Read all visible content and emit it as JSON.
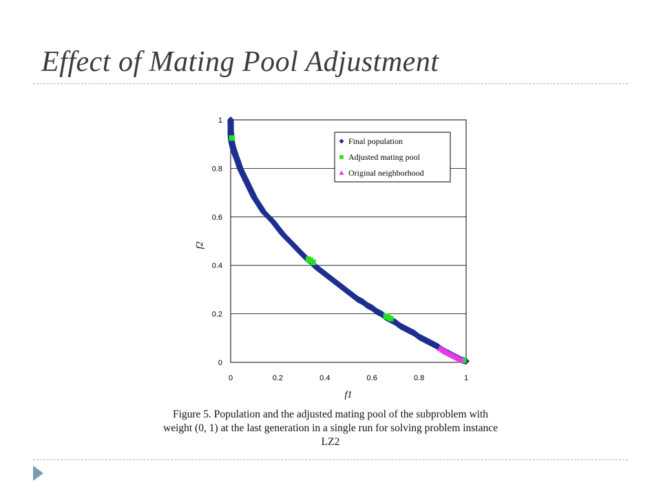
{
  "slide": {
    "title": "Effect of Mating Pool Adjustment"
  },
  "caption": {
    "line1": "Figure 5.    Population and the adjusted mating pool of the subproblem with",
    "line2": "weight (0, 1) at the last generation in a single run for solving problem instance",
    "line3": "LZ2"
  },
  "colors": {
    "final_population": "#1f2f8f",
    "adjusted_mating_pool": "#22e022",
    "original_neighborhood": "#e53be5",
    "rule": "#9bb5c8",
    "bullet": "#7a9bb3"
  },
  "chart_data": {
    "type": "scatter",
    "xlabel": "f1",
    "ylabel": "f2",
    "xlim": [
      0,
      1
    ],
    "ylim": [
      0,
      1
    ],
    "x_ticks": [
      "0",
      "0.2",
      "0.4",
      "0.6",
      "0.8",
      "1"
    ],
    "y_ticks": [
      "0",
      "0.2",
      "0.4",
      "0.6",
      "0.8",
      "1"
    ],
    "grid": "horizontal",
    "legend_position": "top-right",
    "series": [
      {
        "name": "Final population",
        "marker": "diamond",
        "color": "#1f2f8f",
        "x": [
          0.0,
          0.0005,
          0.002,
          0.005,
          0.01,
          0.015,
          0.02,
          0.03,
          0.04,
          0.05,
          0.06,
          0.07,
          0.08,
          0.09,
          0.1,
          0.12,
          0.14,
          0.16,
          0.18,
          0.2,
          0.22,
          0.24,
          0.26,
          0.28,
          0.3,
          0.32,
          0.34,
          0.36,
          0.38,
          0.4,
          0.42,
          0.44,
          0.46,
          0.48,
          0.5,
          0.52,
          0.54,
          0.56,
          0.58,
          0.6,
          0.62,
          0.64,
          0.66,
          0.68,
          0.7,
          0.72,
          0.74,
          0.76,
          0.78,
          0.8,
          0.82,
          0.84,
          0.86,
          0.88,
          0.9,
          0.92,
          0.94,
          0.96,
          0.98,
          1.0
        ],
        "y": [
          1.0,
          0.95,
          0.925,
          0.905,
          0.885,
          0.87,
          0.855,
          0.83,
          0.8,
          0.78,
          0.76,
          0.74,
          0.72,
          0.7,
          0.68,
          0.65,
          0.62,
          0.6,
          0.58,
          0.555,
          0.53,
          0.51,
          0.49,
          0.47,
          0.45,
          0.43,
          0.415,
          0.395,
          0.38,
          0.365,
          0.35,
          0.335,
          0.32,
          0.305,
          0.29,
          0.275,
          0.26,
          0.25,
          0.235,
          0.225,
          0.21,
          0.2,
          0.185,
          0.175,
          0.165,
          0.15,
          0.14,
          0.13,
          0.12,
          0.105,
          0.095,
          0.085,
          0.075,
          0.065,
          0.05,
          0.04,
          0.03,
          0.02,
          0.01,
          0.005
        ]
      },
      {
        "name": "Adjusted mating pool",
        "marker": "square",
        "color": "#22e022",
        "x": [
          0.005,
          0.33,
          0.34,
          0.35,
          0.66,
          0.67,
          0.68,
          0.99
        ],
        "y": [
          0.925,
          0.425,
          0.42,
          0.412,
          0.19,
          0.185,
          0.18,
          0.008
        ]
      },
      {
        "name": "Original neighborhood",
        "marker": "triangle",
        "color": "#e53be5",
        "x": [
          0.89,
          0.9,
          0.91,
          0.92,
          0.93,
          0.94,
          0.95,
          0.96,
          0.97,
          0.98
        ],
        "y": [
          0.058,
          0.052,
          0.047,
          0.041,
          0.036,
          0.031,
          0.026,
          0.021,
          0.016,
          0.011
        ]
      }
    ]
  }
}
